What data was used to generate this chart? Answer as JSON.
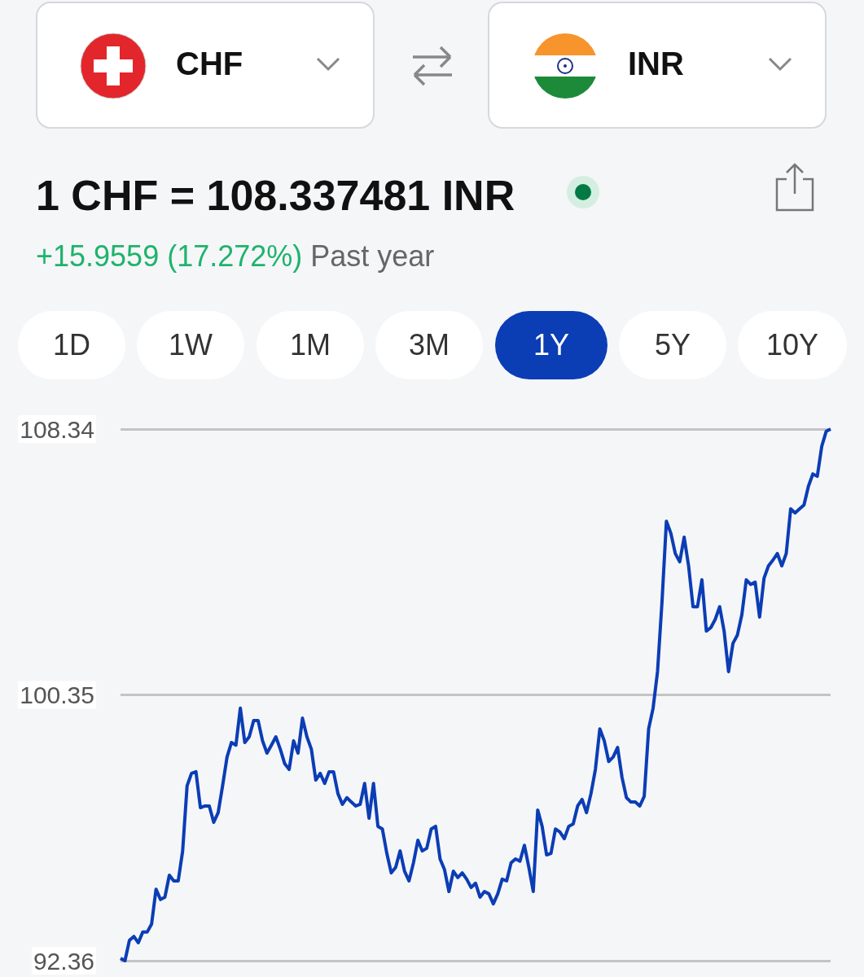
{
  "chart_data": {
    "type": "line",
    "title": "1 CHF = 108.337481 INR",
    "subtitle": "+15.9559 (17.272%)",
    "annotations": [
      "CHF",
      "INR",
      "Past year",
      "1D",
      "1W",
      "1M",
      "3M",
      "1Y",
      "5Y",
      "10Y"
    ],
    "categories": [
      null,
      null,
      null,
      null,
      null,
      null,
      null,
      null,
      null,
      null,
      null,
      null,
      null,
      null,
      null,
      null,
      null,
      null,
      null,
      null,
      null,
      null,
      null,
      null,
      null,
      null,
      null,
      null,
      null,
      null,
      null,
      null,
      null,
      null,
      null,
      null,
      null,
      null,
      null,
      null,
      null,
      null,
      null,
      null,
      null,
      null,
      null,
      null,
      null,
      null,
      null,
      null,
      null,
      null,
      null,
      null,
      null,
      null,
      null,
      null,
      null,
      null,
      null,
      null,
      null,
      null,
      null,
      null,
      null,
      null,
      null,
      null,
      null,
      null,
      null,
      null,
      null,
      null,
      null,
      null,
      null,
      null,
      null,
      null,
      null,
      null,
      null,
      null,
      null,
      null,
      null,
      null,
      null,
      null,
      null,
      null,
      null,
      null,
      null,
      null,
      null,
      null,
      null,
      null,
      null,
      null,
      null,
      null,
      null,
      null,
      null,
      null,
      null,
      null,
      null,
      null,
      null,
      null,
      null,
      null,
      null,
      null,
      null,
      null,
      null,
      null,
      null,
      null,
      null,
      null,
      null,
      null,
      null,
      null,
      null,
      null,
      null,
      null,
      null,
      null,
      null,
      null,
      null,
      null,
      null,
      null,
      null,
      null,
      null,
      null,
      null,
      null,
      null,
      null,
      null,
      null,
      null,
      null,
      null,
      null,
      null
    ],
    "values": [
      92.43,
      92.36,
      92.97,
      93.09,
      92.9,
      93.22,
      93.22,
      93.46,
      94.51,
      94.2,
      94.27,
      94.93,
      94.76,
      94.76,
      95.66,
      97.62,
      97.99,
      98.04,
      96.96,
      97.01,
      97.01,
      96.52,
      96.81,
      97.62,
      98.48,
      98.92,
      98.84,
      99.95,
      98.92,
      99.09,
      99.58,
      99.58,
      98.97,
      98.6,
      98.84,
      99.09,
      98.72,
      98.28,
      98.11,
      98.97,
      98.6,
      99.65,
      99.09,
      98.72,
      97.79,
      97.99,
      97.69,
      98.04,
      98.04,
      97.38,
      97.06,
      97.26,
      97.13,
      97.01,
      97.06,
      97.69,
      96.64,
      97.69,
      96.4,
      96.32,
      95.59,
      95.0,
      95.17,
      95.66,
      95.05,
      94.76,
      95.3,
      95.98,
      95.66,
      95.74,
      96.32,
      96.4,
      95.42,
      95.1,
      94.44,
      95.05,
      94.86,
      95.0,
      94.81,
      94.56,
      94.69,
      94.27,
      94.44,
      94.37,
      94.07,
      94.37,
      94.81,
      94.76,
      95.3,
      95.42,
      95.35,
      95.83,
      95.17,
      94.44,
      96.89,
      96.4,
      95.54,
      95.59,
      96.32,
      96.23,
      96.03,
      96.4,
      96.47,
      97.01,
      97.21,
      96.81,
      97.38,
      98.11,
      99.33,
      98.97,
      98.35,
      98.48,
      98.77,
      97.87,
      97.26,
      97.13,
      97.13,
      97.01,
      97.3,
      99.33,
      99.95,
      101.05,
      103.13,
      105.57,
      105.21,
      104.6,
      104.35,
      105.09,
      104.23,
      103.0,
      103.0,
      103.81,
      102.27,
      102.37,
      102.62,
      103.0,
      102.27,
      101.05,
      101.9,
      102.15,
      102.76,
      103.81,
      103.67,
      103.74,
      102.69,
      103.86,
      104.23,
      104.4,
      104.6,
      104.23,
      104.6,
      105.94,
      105.82,
      105.94,
      106.06,
      106.62,
      106.99,
      106.92,
      107.82,
      108.27,
      108.34
    ],
    "color": "#0b3db5",
    "ylim": [
      92.36,
      108.34
    ],
    "yticks": [
      92.36,
      100.35,
      108.34
    ],
    "grid": "y",
    "tick_labels": "y"
  }
}
